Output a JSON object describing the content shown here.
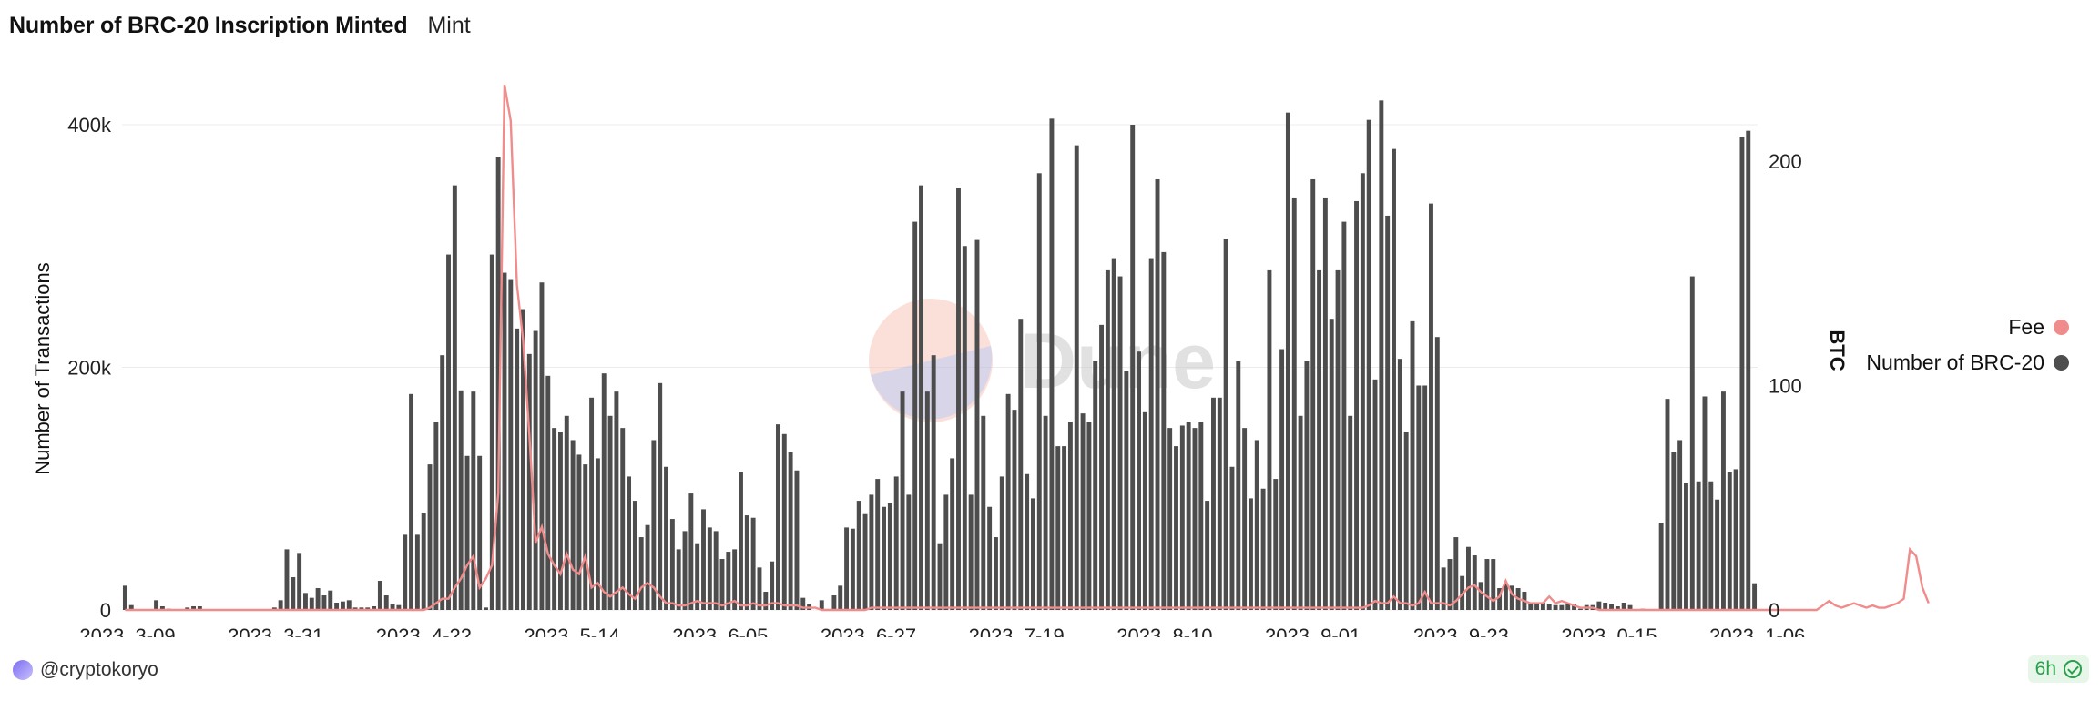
{
  "header": {
    "title": "Number of BRC-20 Inscription Minted",
    "subtitle": "Mint"
  },
  "author": {
    "handle": "@cryptokoryo"
  },
  "status_badge": {
    "text": "6h"
  },
  "colors": {
    "bars": "#4d4d4d",
    "fee_line": "#f08c8c",
    "grid": "#ececec",
    "badge_green": "#2aa04a"
  },
  "chart_data": {
    "type": "bar",
    "ylabel": "Number of Transactions",
    "y2label": "BTC",
    "ylim": [
      0,
      400000
    ],
    "y2lim": [
      0,
      200
    ],
    "y_ticks": [
      0,
      200000,
      400000
    ],
    "y_tick_labels": [
      "0",
      "200k",
      "400k"
    ],
    "y2_ticks": [
      0,
      100,
      200
    ],
    "y2_tick_labels": [
      "0",
      "100",
      "200"
    ],
    "x_tick_labels": [
      "2023..3-09",
      "2023..3-31",
      "2023..4-22",
      "2023..5-14",
      "2023..6-05",
      "2023..6-27",
      "2023..7-19",
      "2023..8-10",
      "2023..9-01",
      "2023..9-23",
      "2023..0-15",
      "2023..1-06"
    ],
    "grid": true,
    "legend_position": "right",
    "series": [
      {
        "name": "Number of BRC-20",
        "type": "bar",
        "axis": "left",
        "values": [
          20000,
          4000,
          0,
          0,
          0,
          8000,
          3000,
          1000,
          0,
          0,
          2000,
          3000,
          3000,
          0,
          0,
          0,
          0,
          0,
          0,
          0,
          0,
          0,
          0,
          0,
          2000,
          8000,
          50000,
          27000,
          47000,
          14000,
          10000,
          18000,
          12000,
          16000,
          6000,
          7000,
          8000,
          2000,
          2000,
          2000,
          3000,
          24000,
          12000,
          5000,
          4000,
          62000,
          178000,
          62000,
          80000,
          120000,
          155000,
          210000,
          293000,
          350000,
          181000,
          127000,
          180000,
          127000,
          2000,
          293000,
          373000,
          278000,
          272000,
          232000,
          248000,
          211000,
          230000,
          270000,
          193000,
          150000,
          147000,
          160000,
          140000,
          128000,
          120000,
          175000,
          125000,
          195000,
          160000,
          180000,
          150000,
          110000,
          90000,
          60000,
          70000,
          140000,
          187000,
          118000,
          75000,
          50000,
          65000,
          96000,
          55000,
          83000,
          68000,
          65000,
          42000,
          48000,
          50000,
          114000,
          78000,
          76000,
          35000,
          15000,
          40000,
          153000,
          145000,
          130000,
          115000,
          10000,
          5000,
          0,
          8000,
          0,
          12000,
          20000,
          68000,
          67000,
          90000,
          79000,
          95000,
          108000,
          85000,
          88000,
          110000,
          180000,
          95000,
          320000,
          350000,
          180000,
          210000,
          55000,
          95000,
          125000,
          348000,
          300000,
          95000,
          305000,
          160000,
          85000,
          60000,
          110000,
          178000,
          165000,
          240000,
          112000,
          92000,
          360000,
          160000,
          405000,
          135000,
          135000,
          155000,
          383000,
          162000,
          155000,
          205000,
          235000,
          280000,
          290000,
          275000,
          197000,
          400000,
          213000,
          163000,
          290000,
          355000,
          295000,
          150000,
          135000,
          152000,
          155000,
          150000,
          155000,
          90000,
          175000,
          175000,
          306000,
          118000,
          205000,
          150000,
          92000,
          140000,
          100000,
          280000,
          108000,
          215000,
          410000,
          340000,
          160000,
          205000,
          355000,
          280000,
          340000,
          240000,
          280000,
          320000,
          160000,
          337000,
          360000,
          404000,
          190000,
          420000,
          325000,
          380000,
          207000,
          147000,
          238000,
          185000,
          185000,
          335000,
          225000,
          35000,
          42000,
          60000,
          28000,
          52000,
          45000,
          23000,
          42000,
          42000,
          18000,
          22000,
          20000,
          18000,
          15000,
          5000,
          5000,
          6000,
          5000,
          4000,
          4000,
          5000,
          5000,
          1000,
          4000,
          4000,
          7000,
          6000,
          5000,
          3000,
          6000,
          4000,
          0,
          1000,
          0,
          0,
          72000,
          174000,
          130000,
          140000,
          105000,
          275000,
          106000,
          176000,
          106000,
          91000,
          180000,
          114000,
          116000,
          390000,
          395000,
          22000
        ]
      },
      {
        "name": "Fee",
        "type": "line",
        "axis": "right",
        "values": [
          0,
          0,
          0,
          0,
          0,
          0,
          0,
          0,
          0,
          0,
          0,
          0,
          0,
          0,
          0,
          0,
          0,
          0,
          0,
          0,
          0,
          0,
          0,
          0,
          0,
          0,
          0,
          0,
          0,
          0,
          0,
          0,
          0,
          0,
          0,
          0,
          0,
          0,
          0,
          0,
          0,
          0,
          0,
          0,
          0,
          0,
          0,
          0,
          0,
          1,
          3,
          5,
          5,
          10,
          14,
          20,
          24,
          10,
          14,
          20,
          52,
          234,
          218,
          145,
          120,
          78,
          30,
          37,
          25,
          20,
          16,
          25,
          18,
          16,
          24,
          10,
          12,
          8,
          6,
          8,
          10,
          7,
          5,
          10,
          12,
          10,
          6,
          3,
          3,
          2,
          2,
          3,
          4,
          3,
          3,
          3,
          2,
          3,
          4,
          2,
          2,
          3,
          2,
          2,
          3,
          3,
          2,
          2,
          2,
          1,
          1,
          1,
          0,
          0,
          0,
          0,
          0,
          0,
          0,
          0,
          1,
          1,
          1,
          1,
          1,
          1,
          1,
          1,
          1,
          1,
          1,
          1,
          1,
          1,
          1,
          1,
          1,
          1,
          1,
          1,
          1,
          1,
          1,
          1,
          1,
          1,
          1,
          1,
          1,
          1,
          1,
          1,
          1,
          1,
          1,
          1,
          1,
          1,
          1,
          1,
          1,
          1,
          1,
          1,
          1,
          1,
          1,
          1,
          1,
          1,
          1,
          1,
          1,
          1,
          1,
          1,
          1,
          1,
          1,
          1,
          1,
          1,
          1,
          1,
          1,
          1,
          1,
          1,
          1,
          1,
          1,
          1,
          1,
          1,
          1,
          1,
          1,
          1,
          1,
          1,
          2,
          4,
          3,
          3,
          6,
          3,
          3,
          2,
          3,
          8,
          3,
          3,
          3,
          2,
          4,
          7,
          10,
          11,
          8,
          6,
          4,
          6,
          13,
          7,
          5,
          4,
          3,
          3,
          3,
          6,
          3,
          4,
          3,
          2,
          1,
          1,
          1,
          0,
          0,
          0,
          0,
          0,
          0,
          0,
          0,
          0,
          0,
          0,
          0,
          0,
          0,
          0,
          0,
          0,
          0,
          0,
          0,
          0,
          0,
          0,
          0,
          0,
          0,
          0,
          0,
          0,
          0,
          0,
          0,
          0,
          0,
          0,
          0,
          2,
          4,
          2,
          1,
          2,
          3,
          2,
          1,
          2,
          1,
          1,
          2,
          3,
          5,
          27,
          24,
          10,
          3
        ]
      }
    ]
  }
}
